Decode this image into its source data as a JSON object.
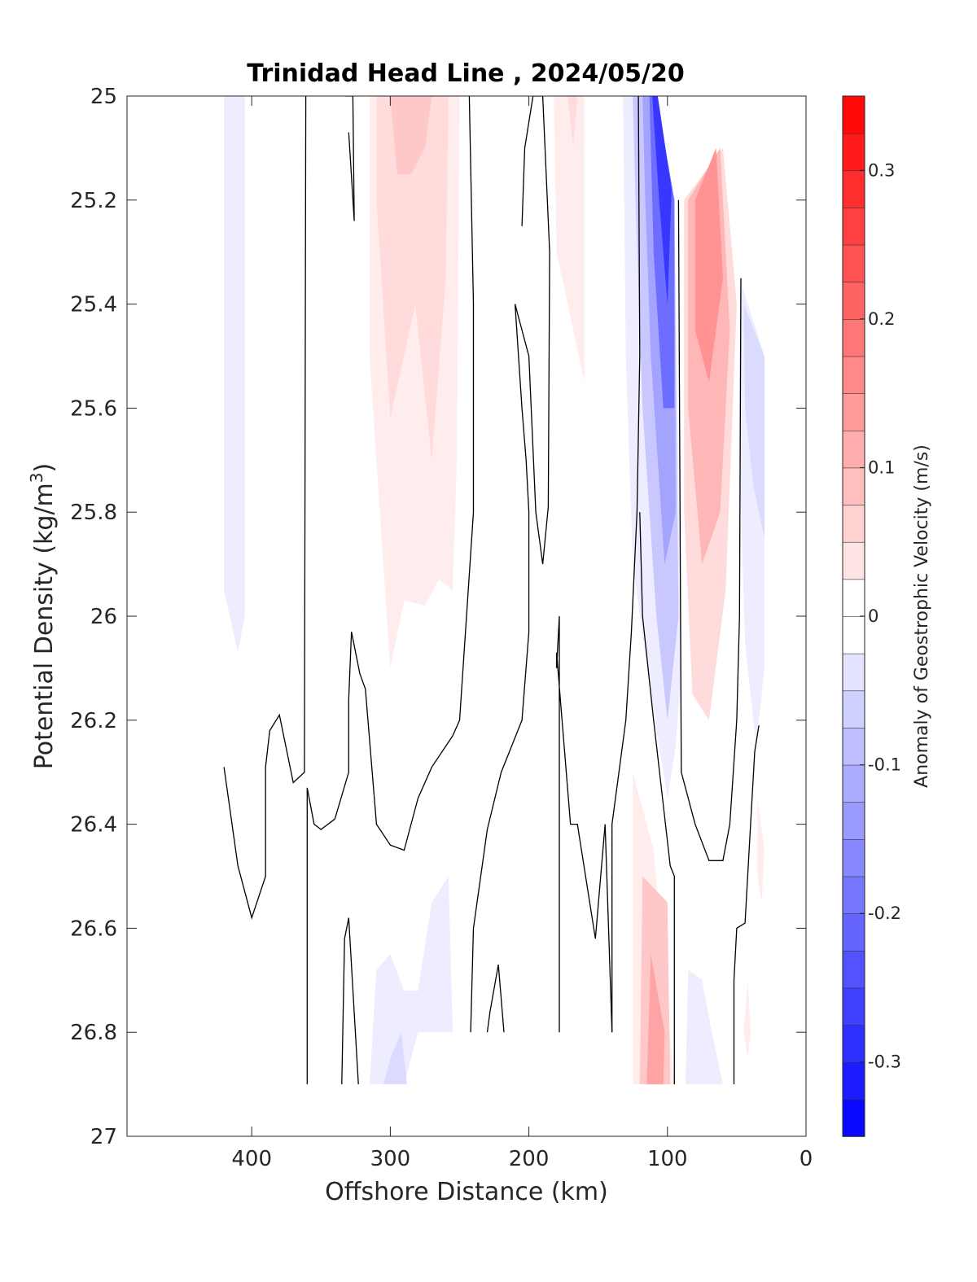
{
  "chart_data": {
    "type": "heatmap",
    "subtype": "filled-contour",
    "title": "Trinidad Head Line , 2024/05/20",
    "xlabel": "Offshore Distance (km)",
    "ylabel_main": "Potential Density (kg/m",
    "ylabel_sup": "3",
    "ylabel_close": ")",
    "colorbar_label": "Anomaly of Geostrophic Velocity (m/s)",
    "xlim": [
      490,
      0
    ],
    "x_reversed": true,
    "ylim": [
      25,
      27
    ],
    "y_reversed": true,
    "xticks": [
      400,
      300,
      200,
      100,
      0
    ],
    "xtick_labels": [
      "400",
      "300",
      "200",
      "100",
      "0"
    ],
    "yticks": [
      25,
      25.2,
      25.4,
      25.6,
      25.8,
      26,
      26.2,
      26.4,
      26.6,
      26.8,
      27
    ],
    "ytick_labels": [
      "25",
      "25.2",
      "25.4",
      "25.6",
      "25.8",
      "26",
      "26.2",
      "26.4",
      "26.6",
      "26.8",
      "27"
    ],
    "colorbar": {
      "range": [
        -0.35,
        0.35
      ],
      "step": 0.025,
      "ticks": [
        0.3,
        0.2,
        0.1,
        0,
        -0.1,
        -0.2,
        -0.3
      ],
      "tick_labels": [
        "0.3",
        "0.2",
        "0.1",
        "0",
        "-0.1",
        "-0.2",
        "-0.3"
      ],
      "colormap": "blue-white-red",
      "low_color": "#0000ff",
      "high_color": "#ff0000",
      "mid_color": "#ffffff"
    },
    "filled_regions": [
      {
        "value": -0.025,
        "points": [
          [
            420,
            25
          ],
          [
            405,
            25
          ],
          [
            405,
            26.0
          ],
          [
            410,
            26.07
          ],
          [
            420,
            25.95
          ]
        ]
      },
      {
        "value": 0.025,
        "points": [
          [
            315,
            25
          ],
          [
            250,
            25
          ],
          [
            252,
            25.7
          ],
          [
            255,
            25.95
          ],
          [
            265,
            25.93
          ],
          [
            275,
            25.98
          ],
          [
            290,
            25.97
          ],
          [
            300,
            26.1
          ],
          [
            315,
            25.5
          ]
        ]
      },
      {
        "value": 0.05,
        "points": [
          [
            310,
            25
          ],
          [
            258,
            25
          ],
          [
            260,
            25.35
          ],
          [
            270,
            25.7
          ],
          [
            282,
            25.4
          ],
          [
            300,
            25.62
          ],
          [
            310,
            25.2
          ]
        ]
      },
      {
        "value": 0.075,
        "points": [
          [
            300,
            25
          ],
          [
            270,
            25
          ],
          [
            275,
            25.1
          ],
          [
            285,
            25.15
          ],
          [
            295,
            25.15
          ]
        ]
      },
      {
        "value": 0.025,
        "points": [
          [
            182,
            25
          ],
          [
            160,
            25
          ],
          [
            160,
            25.55
          ],
          [
            168,
            25.45
          ],
          [
            180,
            25.3
          ]
        ]
      },
      {
        "value": 0.05,
        "points": [
          [
            172,
            25
          ],
          [
            165,
            25
          ],
          [
            168,
            25.1
          ]
        ]
      },
      {
        "value": -0.025,
        "points": [
          [
            132,
            25
          ],
          [
            110,
            25
          ],
          [
            95,
            25.2
          ],
          [
            90,
            26.1
          ],
          [
            94,
            26.25
          ],
          [
            100,
            26.35
          ],
          [
            112,
            26.15
          ],
          [
            125,
            25.9
          ],
          [
            130,
            25.5
          ]
        ]
      },
      {
        "value": -0.075,
        "points": [
          [
            125,
            25
          ],
          [
            110,
            25
          ],
          [
            95,
            25.2
          ],
          [
            92,
            26.0
          ],
          [
            100,
            26.2
          ],
          [
            108,
            26.0
          ],
          [
            118,
            25.6
          ],
          [
            123,
            25.2
          ]
        ]
      },
      {
        "value": -0.125,
        "points": [
          [
            118,
            25
          ],
          [
            110,
            25
          ],
          [
            95,
            25.2
          ],
          [
            94,
            25.8
          ],
          [
            102,
            25.9
          ],
          [
            112,
            25.5
          ],
          [
            116,
            25.2
          ]
        ]
      },
      {
        "value": -0.2,
        "points": [
          [
            113,
            25
          ],
          [
            108,
            25
          ],
          [
            95,
            25.2
          ],
          [
            95,
            25.6
          ],
          [
            103,
            25.6
          ],
          [
            110,
            25.3
          ]
        ]
      },
      {
        "value": -0.275,
        "points": [
          [
            111,
            25
          ],
          [
            107,
            25
          ],
          [
            97,
            25.18
          ],
          [
            100,
            25.4
          ],
          [
            106,
            25.2
          ]
        ]
      },
      {
        "value": 0.05,
        "points": [
          [
            88,
            25.2
          ],
          [
            60,
            25.1
          ],
          [
            50,
            25.4
          ],
          [
            58,
            25.95
          ],
          [
            70,
            26.2
          ],
          [
            82,
            26.15
          ],
          [
            88,
            25.8
          ]
        ]
      },
      {
        "value": 0.1,
        "points": [
          [
            85,
            25.2
          ],
          [
            62,
            25.1
          ],
          [
            55,
            25.45
          ],
          [
            62,
            25.8
          ],
          [
            75,
            25.9
          ],
          [
            85,
            25.6
          ]
        ]
      },
      {
        "value": 0.15,
        "points": [
          [
            80,
            25.2
          ],
          [
            65,
            25.1
          ],
          [
            60,
            25.35
          ],
          [
            70,
            25.55
          ],
          [
            80,
            25.45
          ]
        ]
      },
      {
        "value": -0.025,
        "points": [
          [
            48,
            25.35
          ],
          [
            30,
            25.5
          ],
          [
            30,
            26.1
          ],
          [
            36,
            26.25
          ],
          [
            44,
            26.05
          ],
          [
            48,
            25.7
          ]
        ]
      },
      {
        "value": -0.05,
        "points": [
          [
            45,
            25.4
          ],
          [
            30,
            25.5
          ],
          [
            30,
            25.85
          ],
          [
            38,
            25.75
          ],
          [
            44,
            25.6
          ]
        ]
      },
      {
        "value": 0.025,
        "points": [
          [
            125,
            26.3
          ],
          [
            110,
            26.45
          ],
          [
            95,
            26.9
          ],
          [
            125,
            26.9
          ]
        ]
      },
      {
        "value": 0.075,
        "points": [
          [
            118,
            26.5
          ],
          [
            100,
            26.55
          ],
          [
            98,
            26.9
          ],
          [
            120,
            26.9
          ]
        ]
      },
      {
        "value": 0.125,
        "points": [
          [
            112,
            26.65
          ],
          [
            102,
            26.8
          ],
          [
            103,
            26.9
          ],
          [
            115,
            26.9
          ]
        ]
      },
      {
        "value": -0.025,
        "points": [
          [
            315,
            26.9
          ],
          [
            310,
            26.68
          ],
          [
            300,
            26.65
          ],
          [
            290,
            26.72
          ],
          [
            280,
            26.72
          ],
          [
            270,
            26.55
          ],
          [
            258,
            26.5
          ],
          [
            255,
            26.8
          ],
          [
            280,
            26.8
          ],
          [
            290,
            26.9
          ]
        ]
      },
      {
        "value": -0.05,
        "points": [
          [
            305,
            26.9
          ],
          [
            300,
            26.85
          ],
          [
            292,
            26.8
          ],
          [
            288,
            26.9
          ]
        ]
      },
      {
        "value": -0.025,
        "points": [
          [
            87,
            26.9
          ],
          [
            85,
            26.68
          ],
          [
            75,
            26.7
          ],
          [
            68,
            26.8
          ],
          [
            60,
            26.9
          ]
        ]
      },
      {
        "value": 0.025,
        "points": [
          [
            35,
            26.35
          ],
          [
            30,
            26.45
          ],
          [
            32,
            26.55
          ],
          [
            35,
            26.5
          ]
        ]
      },
      {
        "value": 0.025,
        "points": [
          [
            45,
            26.8
          ],
          [
            42,
            26.7
          ],
          [
            40,
            26.8
          ],
          [
            42,
            26.85
          ]
        ]
      }
    ],
    "zero_contours": [
      [
        [
          420,
          26.29
        ],
        [
          410,
          26.48
        ],
        [
          400,
          26.58
        ],
        [
          390,
          26.5
        ],
        [
          390,
          26.29
        ],
        [
          387,
          26.22
        ],
        [
          380,
          26.19
        ],
        [
          370,
          26.32
        ],
        [
          362,
          26.3
        ],
        [
          361,
          25
        ]
      ],
      [
        [
          340,
          26.39
        ],
        [
          350,
          26.41
        ],
        [
          355,
          26.4
        ],
        [
          360,
          26.33
        ],
        [
          360,
          26.9
        ]
      ],
      [
        [
          323,
          26.9
        ],
        [
          330,
          26.58
        ],
        [
          333,
          26.62
        ],
        [
          335,
          26.9
        ]
      ],
      [
        [
          340,
          26.39
        ],
        [
          330,
          26.3
        ],
        [
          330,
          26.16
        ],
        [
          328,
          26.03
        ],
        [
          322,
          26.11
        ],
        [
          318,
          26.14
        ],
        [
          310,
          26.4
        ],
        [
          300,
          26.44
        ],
        [
          290,
          26.45
        ],
        [
          280,
          26.35
        ],
        [
          270,
          26.29
        ],
        [
          255,
          26.23
        ],
        [
          250,
          26.2
        ],
        [
          245,
          26.0
        ],
        [
          240,
          25.8
        ],
        [
          240,
          25.4
        ],
        [
          243,
          25
        ]
      ],
      [
        [
          332,
          25
        ],
        [
          327,
          25
        ],
        [
          326,
          25.24
        ],
        [
          330,
          25.07
        ]
      ],
      [
        [
          242,
          26.8
        ],
        [
          240,
          26.6
        ],
        [
          230,
          26.41
        ],
        [
          220,
          26.3
        ],
        [
          205,
          26.2
        ],
        [
          200,
          26.03
        ],
        [
          200,
          25.8
        ],
        [
          202,
          25.7
        ],
        [
          205,
          25.6
        ],
        [
          210,
          25.4
        ],
        [
          200,
          25.5
        ],
        [
          195,
          25.8
        ],
        [
          190,
          25.9
        ],
        [
          186,
          25.79
        ],
        [
          185,
          25.3
        ],
        [
          190,
          25
        ],
        [
          197,
          25
        ],
        [
          203,
          25.1
        ],
        [
          205,
          25.25
        ]
      ],
      [
        [
          218,
          26.8
        ],
        [
          222,
          26.67
        ],
        [
          228,
          26.76
        ],
        [
          230,
          26.8
        ]
      ],
      [
        [
          178,
          26.8
        ],
        [
          178,
          26.0
        ],
        [
          180,
          26.1
        ],
        [
          180,
          26.07
        ],
        [
          170,
          26.4
        ],
        [
          165,
          26.4
        ],
        [
          152,
          26.62
        ],
        [
          145,
          26.4
        ],
        [
          140,
          26.8
        ]
      ],
      [
        [
          140,
          26.8
        ],
        [
          140,
          26.4
        ],
        [
          130,
          26.2
        ],
        [
          126,
          26.03
        ],
        [
          122,
          25.8
        ],
        [
          120,
          25.5
        ],
        [
          121,
          25
        ]
      ],
      [
        [
          95,
          26.9
        ],
        [
          95,
          26.5
        ],
        [
          98,
          26.48
        ],
        [
          110,
          26.2
        ],
        [
          118,
          26.0
        ],
        [
          120,
          25.8
        ]
      ],
      [
        [
          92,
          25.2
        ],
        [
          90,
          26.3
        ],
        [
          80,
          26.4
        ],
        [
          70,
          26.47
        ],
        [
          60,
          26.47
        ],
        [
          55,
          26.4
        ],
        [
          50,
          26.2
        ],
        [
          48,
          26.0
        ],
        [
          47,
          25.35
        ]
      ],
      [
        [
          52,
          26.9
        ],
        [
          52,
          26.7
        ],
        [
          50,
          26.6
        ],
        [
          44,
          26.59
        ],
        [
          40,
          26.4
        ],
        [
          37,
          26.26
        ],
        [
          34,
          26.21
        ]
      ]
    ]
  }
}
